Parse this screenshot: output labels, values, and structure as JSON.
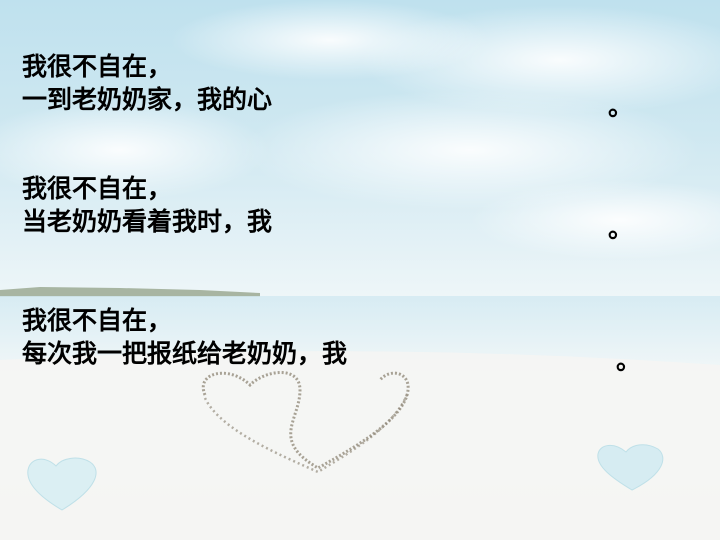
{
  "stanzas": [
    {
      "line1": "我很不自在，",
      "line2": "一到老奶奶家，我的心",
      "end": "。"
    },
    {
      "line1": "我很不自在，",
      "line2": "当老奶奶看着我时，我",
      "end": "。"
    },
    {
      "line1": "我很不自在，",
      "line2": "每次我一把报纸给老奶奶，我",
      "end": "。"
    }
  ],
  "colors": {
    "text": "#000000",
    "sky": "#bfe1ee",
    "sea": "#e3f1f6",
    "sand": "#f4f5f4"
  }
}
